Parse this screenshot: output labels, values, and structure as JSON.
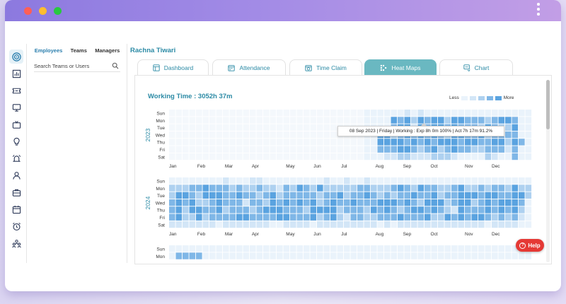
{
  "team_panel": {
    "tabs": [
      "Employees",
      "Teams",
      "Managers"
    ],
    "search_placeholder": "Search Teams or Users"
  },
  "main": {
    "username": "Rachna Tiwari",
    "tabs": [
      {
        "label": "Dashboard",
        "icon": "dashboard-icon"
      },
      {
        "label": "Attendance",
        "icon": "calendar-icon"
      },
      {
        "label": "Time Claim",
        "icon": "calendar-clock-icon"
      },
      {
        "label": "Heat Maps",
        "icon": "heatmap-icon"
      },
      {
        "label": "Chart",
        "icon": "chart-icon"
      }
    ],
    "active_tab": "Heat Maps",
    "working_time": "Working Time : 3052h 37m",
    "legend_less": "Less",
    "legend_more": "More",
    "tooltip": "08 Sep 2023  |  Friday  |  Working : Exp 8h 0m  100%  |  Act 7h 17m  91.2%"
  },
  "help_label": "Help",
  "colors": {
    "accent": "#2b8aa5",
    "active_tab": "#6ab8c1",
    "heat_levels": [
      "#eaf3fb",
      "#d3e6f7",
      "#aed1f0",
      "#7fb7e7",
      "#5aa3e0"
    ],
    "help": "#e53935"
  },
  "chart_data": {
    "type": "heatmap",
    "day_labels": [
      "Sun",
      "Mon",
      "Tue",
      "Wed",
      "Thu",
      "Fri",
      "Sat"
    ],
    "month_labels": [
      "Jan",
      "Feb",
      "Mar",
      "Apr",
      "May",
      "Jun",
      "Jul",
      "Aug",
      "Sep",
      "Oct",
      "Nov",
      "Dec"
    ],
    "years": [
      {
        "year": "2023",
        "active_from_week": 29,
        "rows": [
          "000000000000000000000000000000000001010000000000000000",
          "000000000000000000000000000000000434243442443332344300",
          "000000000000000000000000000000000344143443433324322400",
          "000000000000000000000000000000044234343432443342333300",
          "000000000000000000000000000000044443434344434433442430",
          "000000000000000000000000000000033344323423433223331300",
          "000000000000000000000000000000001122111222100002100300"
        ]
      },
      {
        "year": "2024",
        "rows": [
          "000000001000110000000001001001000000000000000000000000",
          "222334333232232213243242222233222343243322342232332422",
          "244324443343323423333323342334323233433423344434433442",
          "343422343331332434343423433433344434324442344234344430",
          "342443342333234443332444423332434323443432143334343420",
          "342242333344333344333423421332233343334224343443232310",
          "111111101111111001111011111111101011111111111110111100"
        ]
      },
      {
        "year": "",
        "rows": [
          "000000000000000000000000000000000000000000000000000000",
          "033330000000000000000000000000000000000000000000000000"
        ]
      }
    ]
  }
}
